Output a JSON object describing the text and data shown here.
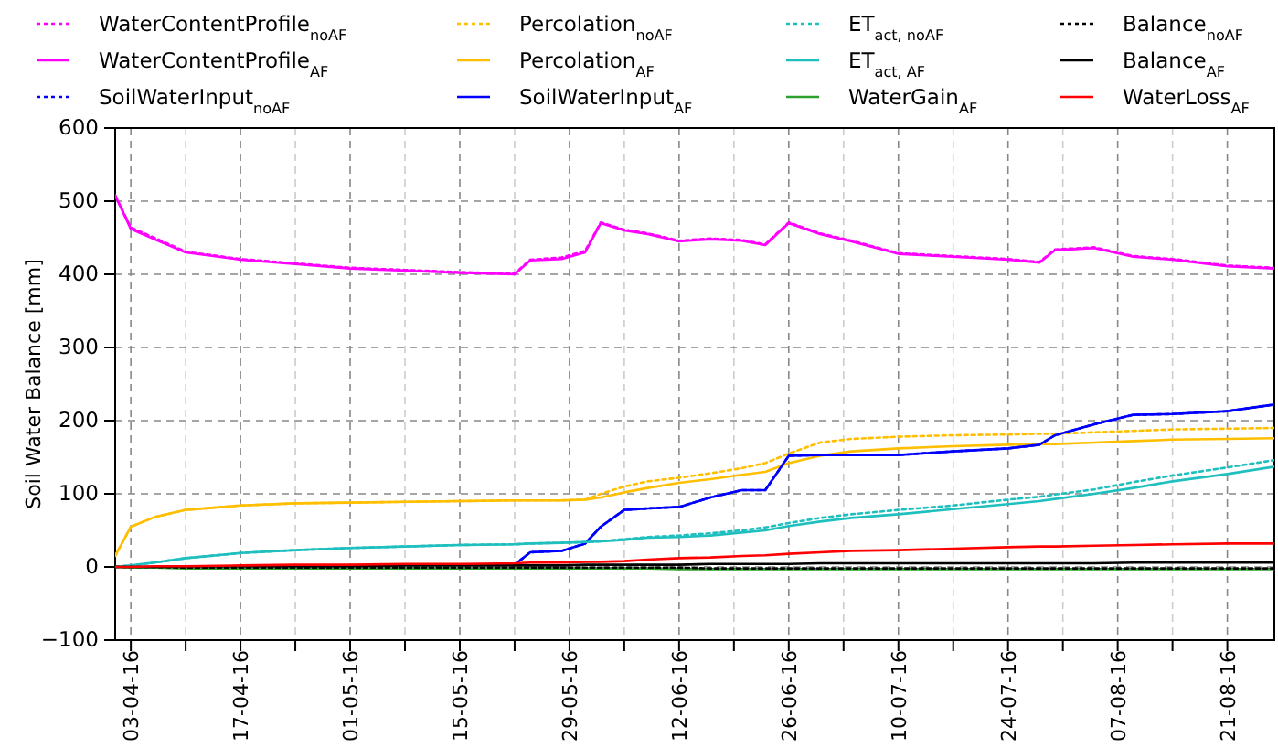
{
  "chart_data": {
    "type": "line",
    "ylabel": "Soil Water Balance [mm]",
    "x": [
      "--04-01",
      "--04-03",
      "--04-06",
      "--04-10",
      "--04-17",
      "--04-24",
      "--05-01",
      "--05-08",
      "--05-15",
      "--05-22",
      "--05-24",
      "--05-28",
      "--05-31",
      "--06-02",
      "--06-05",
      "--06-08",
      "--06-12",
      "--06-16",
      "--06-20",
      "--06-23",
      "--06-26",
      "--06-30",
      "--07-04",
      "--07-10",
      "--07-17",
      "--07-24",
      "--07-28",
      "--07-30",
      "--08-04",
      "--08-09",
      "--08-14",
      "--08-21",
      "--08-27"
    ],
    "xlim": [
      "--04-01",
      "--08-27"
    ],
    "xticks": [
      {
        "value": "--04-03",
        "label": "03-04-16"
      },
      {
        "value": "--04-10",
        "label": null
      },
      {
        "value": "--04-17",
        "label": "17-04-16"
      },
      {
        "value": "--04-24",
        "label": null
      },
      {
        "value": "--05-01",
        "label": "01-05-16"
      },
      {
        "value": "--05-08",
        "label": null
      },
      {
        "value": "--05-15",
        "label": "15-05-16"
      },
      {
        "value": "--05-22",
        "label": null
      },
      {
        "value": "--05-29",
        "label": "29-05-16"
      },
      {
        "value": "--06-05",
        "label": null
      },
      {
        "value": "--06-12",
        "label": "12-06-16"
      },
      {
        "value": "--06-19",
        "label": null
      },
      {
        "value": "--06-26",
        "label": "26-06-16"
      },
      {
        "value": "--07-03",
        "label": null
      },
      {
        "value": "--07-10",
        "label": "10-07-16"
      },
      {
        "value": "--07-17",
        "label": null
      },
      {
        "value": "--07-24",
        "label": "24-07-16"
      },
      {
        "value": "--07-31",
        "label": null
      },
      {
        "value": "--08-07",
        "label": "07-08-16"
      },
      {
        "value": "--08-14",
        "label": null
      },
      {
        "value": "--08-21",
        "label": "21-08-16"
      }
    ],
    "ylim": [
      -100,
      600
    ],
    "yticks": [
      {
        "value": -100,
        "label": "−100"
      },
      0,
      100,
      200,
      300,
      400,
      500,
      600
    ],
    "grid": true,
    "legend": "top",
    "series": [
      {
        "name": "WaterContentProfile$_{noAF}$",
        "color": "#ff00ff",
        "line_style": "dotted",
        "values": [
          508,
          464,
          450,
          431,
          421,
          415,
          409,
          406,
          403,
          401,
          420,
          423,
          432,
          471,
          461,
          456,
          446,
          449,
          447,
          441,
          471,
          456,
          446,
          429,
          425,
          421,
          417,
          434,
          437,
          425,
          421,
          412,
          409
        ]
      },
      {
        "name": "WaterContentProfile$_{AF}$",
        "color": "#ff00ff",
        "line_style": "solid",
        "values": [
          508,
          462,
          448,
          430,
          420,
          414,
          408,
          405,
          402,
          400,
          419,
          421,
          430,
          470,
          460,
          455,
          445,
          448,
          446,
          440,
          470,
          455,
          445,
          428,
          424,
          420,
          416,
          433,
          436,
          424,
          420,
          411,
          408
        ]
      },
      {
        "name": "SoilWaterInput$_{noAF}$",
        "color": "#0000ff",
        "line_style": "dotted",
        "values": [
          null,
          null,
          null,
          null,
          null,
          null,
          null,
          null,
          null,
          3,
          20,
          22,
          32,
          55,
          78,
          80,
          82,
          95,
          105,
          105,
          152,
          153,
          153,
          153,
          158,
          162,
          167,
          180,
          195,
          208,
          209,
          213,
          222
        ]
      },
      {
        "name": "Percolation$_{noAF}$",
        "color": "#ffbf00",
        "line_style": "dotted",
        "values": [
          15,
          55,
          68,
          78,
          84,
          87,
          88,
          89,
          90,
          91,
          91,
          91,
          92,
          100,
          110,
          117,
          122,
          128,
          135,
          142,
          155,
          170,
          175,
          178,
          180,
          181,
          182,
          182,
          184,
          186,
          188,
          189,
          190
        ]
      },
      {
        "name": "Percolation$_{AF}$",
        "color": "#ffbf00",
        "line_style": "solid",
        "values": [
          15,
          55,
          68,
          78,
          84,
          87,
          88,
          89,
          90,
          91,
          91,
          91,
          92,
          95,
          102,
          108,
          115,
          120,
          126,
          130,
          142,
          152,
          158,
          162,
          165,
          167,
          168,
          168,
          170,
          172,
          174,
          175,
          176
        ]
      },
      {
        "name": "SoilWaterInput$_{AF}$",
        "color": "#0000ff",
        "line_style": "solid",
        "values": [
          null,
          null,
          null,
          null,
          null,
          null,
          null,
          null,
          null,
          3,
          20,
          22,
          32,
          55,
          78,
          80,
          82,
          95,
          105,
          105,
          152,
          153,
          153,
          153,
          158,
          162,
          167,
          180,
          195,
          208,
          209,
          213,
          222
        ]
      },
      {
        "name": "ET$_{act, noAF}$",
        "color": "#1fbfbf",
        "line_style": "dotted",
        "values": [
          0,
          2,
          6,
          12,
          19,
          23,
          26,
          28,
          30,
          31,
          32,
          33,
          34,
          35,
          38,
          41,
          43,
          46,
          50,
          54,
          60,
          67,
          72,
          78,
          84,
          92,
          96,
          99,
          106,
          116,
          125,
          136,
          146
        ]
      },
      {
        "name": "ET$_{act, AF}$",
        "color": "#1fbfbf",
        "line_style": "solid",
        "values": [
          0,
          2,
          6,
          12,
          19,
          23,
          26,
          28,
          30,
          31,
          32,
          33,
          34,
          35,
          37,
          40,
          41,
          43,
          47,
          50,
          56,
          62,
          67,
          72,
          79,
          86,
          90,
          93,
          100,
          108,
          117,
          127,
          137
        ]
      },
      {
        "name": "WaterGain$_{AF}$",
        "color": "#2ca02c",
        "line_style": "solid",
        "values": [
          0,
          -1,
          -1,
          -2,
          -2,
          -2,
          -2,
          -2,
          -2,
          -2,
          -2,
          -2,
          -2,
          -2,
          -2,
          -2,
          -3,
          -3,
          -3,
          -3,
          -3,
          -3,
          -3,
          -3,
          -3,
          -3,
          -3,
          -3,
          -3,
          -3,
          -3,
          -3,
          -3
        ]
      },
      {
        "name": "Balance$_{noAF}$",
        "color": "#000000",
        "line_style": "dotted",
        "values": [
          0,
          0,
          0,
          -1,
          -1,
          -1,
          -1,
          -1,
          -1,
          -1,
          -1,
          -1,
          -1,
          -1,
          -1,
          -1,
          -1,
          -2,
          -2,
          -2,
          -2,
          -2,
          -2,
          -2,
          -2,
          -2,
          -2,
          -2,
          -2,
          -2,
          -2,
          -2,
          -2
        ]
      },
      {
        "name": "Balance$_{AF}$",
        "color": "#000000",
        "line_style": "solid",
        "values": [
          0,
          0,
          0,
          1,
          1,
          1,
          1,
          2,
          2,
          2,
          2,
          2,
          3,
          3,
          3,
          3,
          3,
          4,
          4,
          4,
          4,
          5,
          5,
          5,
          5,
          5,
          5,
          5,
          5,
          6,
          6,
          6,
          6
        ]
      },
      {
        "name": "WaterLoss$_{AF}$",
        "color": "#ff0000",
        "line_style": "solid",
        "values": [
          0,
          0,
          1,
          1,
          2,
          3,
          3,
          4,
          4,
          5,
          6,
          6,
          7,
          7,
          8,
          10,
          12,
          13,
          15,
          16,
          18,
          20,
          22,
          23,
          25,
          27,
          28,
          28,
          29,
          30,
          31,
          32,
          32
        ]
      }
    ]
  }
}
